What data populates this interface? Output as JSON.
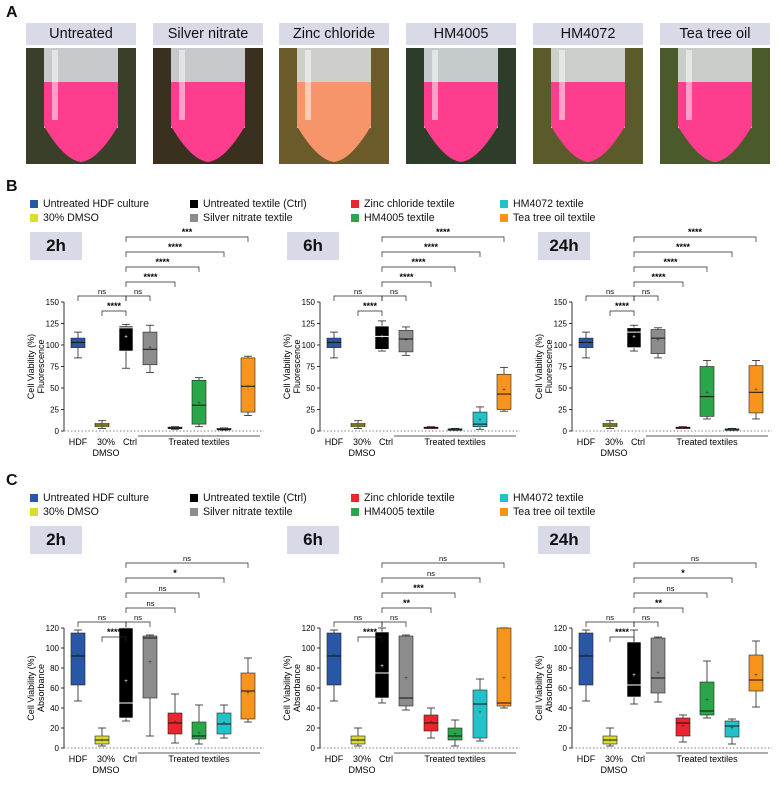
{
  "panel_labels": {
    "a": "A",
    "b": "B",
    "c": "C"
  },
  "tubes": [
    {
      "label": "Untreated",
      "color": "#ff3d8f"
    },
    {
      "label": "Silver nitrate",
      "color": "#ff3d8f"
    },
    {
      "label": "Zinc chloride",
      "color": "#f6946a"
    },
    {
      "label": "HM4005",
      "color": "#ff3d8f"
    },
    {
      "label": "HM4072",
      "color": "#ff3d8f"
    },
    {
      "label": "Tea tree oil",
      "color": "#ff3d8f"
    }
  ],
  "legend": [
    {
      "label": "Untreated HDF culture",
      "color": "#2a56a6"
    },
    {
      "label": "30% DMSO",
      "color": "#dcdc2a"
    },
    {
      "label": "Untreated textile (Ctrl)",
      "color": "#000000"
    },
    {
      "label": "Silver nitrate textile",
      "color": "#8c8c8c"
    },
    {
      "label": "Zinc chloride textile",
      "color": "#e8262e"
    },
    {
      "label": "HM4005 textile",
      "color": "#2aa64a"
    },
    {
      "label": "HM4072 textile",
      "color": "#22c2c8"
    },
    {
      "label": "Tea tree oil textile",
      "color": "#f7941d"
    }
  ],
  "chart_data": [
    {
      "type": "boxplot",
      "panel": "B",
      "title": "2h",
      "ylabel": "Cell Viability (%)\nFluorescence",
      "ylim": [
        0,
        150
      ],
      "yticks": [
        0,
        25,
        50,
        75,
        100,
        125,
        150
      ],
      "xlabels": [
        "HDF",
        "30%\nDMSO",
        "Ctrl"
      ],
      "group_label": "Treated textiles",
      "boxes": [
        {
          "min": 85,
          "q1": 97,
          "med": 103,
          "q3": 108,
          "max": 115,
          "mean": 103
        },
        {
          "min": 3,
          "q1": 5,
          "med": 7,
          "q3": 9,
          "max": 12,
          "mean": 7
        },
        {
          "min": 73,
          "q1": 93,
          "med": 120,
          "q3": 122,
          "max": 124,
          "mean": 110
        },
        {
          "min": 68,
          "q1": 77,
          "med": 95,
          "q3": 115,
          "max": 123,
          "mean": 97
        },
        {
          "min": 2,
          "q1": 3,
          "med": 3.5,
          "q3": 4.5,
          "max": 5,
          "mean": 3.7
        },
        {
          "min": 5,
          "q1": 8,
          "med": 30,
          "q3": 59,
          "max": 62,
          "mean": 33
        },
        {
          "min": 1,
          "q1": 1.5,
          "med": 2,
          "q3": 3,
          "max": 3.5,
          "mean": 2.2
        },
        {
          "min": 18,
          "q1": 22,
          "med": 52,
          "q3": 85,
          "max": 87,
          "mean": 52
        }
      ],
      "significance": [
        {
          "label": "ns",
          "from": 0,
          "to": 2
        },
        {
          "label": "ns",
          "from": 2,
          "to": 3
        },
        {
          "label": "****",
          "from": 1,
          "to": 2
        },
        {
          "label": "****",
          "from": 2,
          "to": 4
        },
        {
          "label": "****",
          "from": 2,
          "to": 5
        },
        {
          "label": "****",
          "from": 2,
          "to": 6
        },
        {
          "label": "***",
          "from": 2,
          "to": 7
        }
      ]
    },
    {
      "type": "boxplot",
      "panel": "B",
      "title": "6h",
      "ylabel": "Cell Viability (%)\nFluorescence",
      "ylim": [
        0,
        150
      ],
      "yticks": [
        0,
        25,
        50,
        75,
        100,
        125,
        150
      ],
      "xlabels": [
        "HDF",
        "30%\nDMSO",
        "Ctrl"
      ],
      "group_label": "Treated textiles",
      "boxes": [
        {
          "min": 85,
          "q1": 97,
          "med": 103,
          "q3": 108,
          "max": 115,
          "mean": 103
        },
        {
          "min": 3,
          "q1": 5,
          "med": 7,
          "q3": 9,
          "max": 12,
          "mean": 7
        },
        {
          "min": 93,
          "q1": 95,
          "med": 110,
          "q3": 122,
          "max": 128,
          "mean": 110
        },
        {
          "min": 88,
          "q1": 92,
          "med": 107,
          "q3": 117,
          "max": 121,
          "mean": 106
        },
        {
          "min": 3,
          "q1": 3.5,
          "med": 4,
          "q3": 4.5,
          "max": 5,
          "mean": 4
        },
        {
          "min": 1,
          "q1": 1.5,
          "med": 2,
          "q3": 2.5,
          "max": 3,
          "mean": 2
        },
        {
          "min": 2,
          "q1": 5,
          "med": 8,
          "q3": 22,
          "max": 28,
          "mean": 13
        },
        {
          "min": 23,
          "q1": 25,
          "med": 43,
          "q3": 66,
          "max": 74,
          "mean": 48
        }
      ],
      "significance": [
        {
          "label": "ns",
          "from": 0,
          "to": 2
        },
        {
          "label": "ns",
          "from": 2,
          "to": 3
        },
        {
          "label": "****",
          "from": 1,
          "to": 2
        },
        {
          "label": "****",
          "from": 2,
          "to": 4
        },
        {
          "label": "****",
          "from": 2,
          "to": 5
        },
        {
          "label": "****",
          "from": 2,
          "to": 6
        },
        {
          "label": "****",
          "from": 2,
          "to": 7
        }
      ]
    },
    {
      "type": "boxplot",
      "panel": "B",
      "title": "24h",
      "ylabel": "Cell Viability (%)\nFluorescence",
      "ylim": [
        0,
        150
      ],
      "yticks": [
        0,
        25,
        50,
        75,
        100,
        125,
        150
      ],
      "xlabels": [
        "HDF",
        "30%\nDMSO",
        "Ctrl"
      ],
      "group_label": "Treated textiles",
      "boxes": [
        {
          "min": 85,
          "q1": 97,
          "med": 103,
          "q3": 108,
          "max": 115,
          "mean": 103
        },
        {
          "min": 3,
          "q1": 5,
          "med": 7,
          "q3": 9,
          "max": 12,
          "mean": 7
        },
        {
          "min": 93,
          "q1": 97,
          "med": 115,
          "q3": 120,
          "max": 123,
          "mean": 110
        },
        {
          "min": 85,
          "q1": 90,
          "med": 108,
          "q3": 118,
          "max": 120,
          "mean": 106
        },
        {
          "min": 3,
          "q1": 3.5,
          "med": 4,
          "q3": 4.5,
          "max": 5,
          "mean": 4
        },
        {
          "min": 14,
          "q1": 17,
          "med": 40,
          "q3": 75,
          "max": 82,
          "mean": 45
        },
        {
          "min": 1,
          "q1": 1.5,
          "med": 2,
          "q3": 2.5,
          "max": 3,
          "mean": 2
        },
        {
          "min": 14,
          "q1": 21,
          "med": 45,
          "q3": 76,
          "max": 82,
          "mean": 48
        }
      ],
      "significance": [
        {
          "label": "ns",
          "from": 0,
          "to": 2
        },
        {
          "label": "ns",
          "from": 2,
          "to": 3
        },
        {
          "label": "****",
          "from": 1,
          "to": 2
        },
        {
          "label": "****",
          "from": 2,
          "to": 4
        },
        {
          "label": "****",
          "from": 2,
          "to": 5
        },
        {
          "label": "****",
          "from": 2,
          "to": 6
        },
        {
          "label": "****",
          "from": 2,
          "to": 7
        }
      ]
    },
    {
      "type": "boxplot",
      "panel": "C",
      "title": "2h",
      "ylabel": "Cell Viability (%)\nAbsorbance",
      "ylim": [
        0,
        120
      ],
      "yticks": [
        0,
        20,
        40,
        60,
        80,
        100,
        120
      ],
      "xlabels": [
        "HDF",
        "30%\nDMSO",
        "Ctrl"
      ],
      "group_label": "Treated textiles",
      "boxes": [
        {
          "min": 47,
          "q1": 63,
          "med": 92,
          "q3": 115,
          "max": 118,
          "mean": 93
        },
        {
          "min": 2,
          "q1": 4,
          "med": 8,
          "q3": 12,
          "max": 20,
          "mean": 8
        },
        {
          "min": 27,
          "q1": 30,
          "med": 45,
          "q3": 120,
          "max": 120,
          "mean": 67
        },
        {
          "min": 12,
          "q1": 50,
          "med": 110,
          "q3": 112,
          "max": 113,
          "mean": 86
        },
        {
          "min": 5,
          "q1": 14,
          "med": 25,
          "q3": 35,
          "max": 54,
          "mean": 26
        },
        {
          "min": 4,
          "q1": 9,
          "med": 12,
          "q3": 26,
          "max": 43,
          "mean": 15
        },
        {
          "min": 10,
          "q1": 14,
          "med": 24,
          "q3": 35,
          "max": 43,
          "mean": 25
        },
        {
          "min": 26,
          "q1": 29,
          "med": 57,
          "q3": 75,
          "max": 90,
          "mean": 55
        }
      ],
      "significance": [
        {
          "label": "ns",
          "from": 0,
          "to": 2
        },
        {
          "label": "ns",
          "from": 2,
          "to": 3
        },
        {
          "label": "****",
          "from": 1,
          "to": 2
        },
        {
          "label": "ns",
          "from": 2,
          "to": 4
        },
        {
          "label": "ns",
          "from": 2,
          "to": 5
        },
        {
          "label": "*",
          "from": 2,
          "to": 6
        },
        {
          "label": "ns",
          "from": 2,
          "to": 7
        }
      ]
    },
    {
      "type": "boxplot",
      "panel": "C",
      "title": "6h",
      "ylabel": "Cell Viability (%)\nAbsorbance",
      "ylim": [
        0,
        120
      ],
      "yticks": [
        0,
        20,
        40,
        60,
        80,
        100,
        120
      ],
      "xlabels": [
        "HDF",
        "30%\nDMSO",
        "Ctrl"
      ],
      "group_label": "Treated textiles",
      "boxes": [
        {
          "min": 47,
          "q1": 63,
          "med": 92,
          "q3": 115,
          "max": 118,
          "mean": 93
        },
        {
          "min": 2,
          "q1": 4,
          "med": 8,
          "q3": 12,
          "max": 20,
          "mean": 8
        },
        {
          "min": 45,
          "q1": 50,
          "med": 75,
          "q3": 116,
          "max": 120,
          "mean": 82
        },
        {
          "min": 38,
          "q1": 42,
          "med": 50,
          "q3": 112,
          "max": 113,
          "mean": 70
        },
        {
          "min": 10,
          "q1": 17,
          "med": 25,
          "q3": 33,
          "max": 40,
          "mean": 26
        },
        {
          "min": 2,
          "q1": 8,
          "med": 12,
          "q3": 20,
          "max": 28,
          "mean": 14
        },
        {
          "min": 7,
          "q1": 10,
          "med": 44,
          "q3": 58,
          "max": 69,
          "mean": 36
        },
        {
          "min": 40,
          "q1": 42,
          "med": 45,
          "q3": 120,
          "max": 120,
          "mean": 70
        }
      ],
      "significance": [
        {
          "label": "ns",
          "from": 0,
          "to": 2
        },
        {
          "label": "ns",
          "from": 2,
          "to": 3
        },
        {
          "label": "****",
          "from": 1,
          "to": 2
        },
        {
          "label": "**",
          "from": 2,
          "to": 4
        },
        {
          "label": "***",
          "from": 2,
          "to": 5
        },
        {
          "label": "ns",
          "from": 2,
          "to": 6
        },
        {
          "label": "ns",
          "from": 2,
          "to": 7
        }
      ]
    },
    {
      "type": "boxplot",
      "panel": "C",
      "title": "24h",
      "ylabel": "Cell Viability (%)\nAbsorbance",
      "ylim": [
        0,
        120
      ],
      "yticks": [
        0,
        20,
        40,
        60,
        80,
        100,
        120
      ],
      "xlabels": [
        "HDF",
        "30%\nDMSO",
        "Ctrl"
      ],
      "group_label": "Treated textiles",
      "boxes": [
        {
          "min": 47,
          "q1": 63,
          "med": 92,
          "q3": 115,
          "max": 118,
          "mean": 93
        },
        {
          "min": 2,
          "q1": 4,
          "med": 8,
          "q3": 12,
          "max": 20,
          "mean": 8
        },
        {
          "min": 44,
          "q1": 51,
          "med": 63,
          "q3": 106,
          "max": 118,
          "mean": 73
        },
        {
          "min": 46,
          "q1": 55,
          "med": 70,
          "q3": 110,
          "max": 111,
          "mean": 75
        },
        {
          "min": 6,
          "q1": 12,
          "med": 25,
          "q3": 30,
          "max": 33,
          "mean": 22
        },
        {
          "min": 30,
          "q1": 33,
          "med": 37,
          "q3": 66,
          "max": 87,
          "mean": 48
        },
        {
          "min": 4,
          "q1": 11,
          "med": 22,
          "q3": 27,
          "max": 29,
          "mean": 20
        },
        {
          "min": 41,
          "q1": 57,
          "med": 68,
          "q3": 93,
          "max": 107,
          "mean": 73
        }
      ],
      "significance": [
        {
          "label": "ns",
          "from": 0,
          "to": 2
        },
        {
          "label": "ns",
          "from": 2,
          "to": 3
        },
        {
          "label": "****",
          "from": 1,
          "to": 2
        },
        {
          "label": "**",
          "from": 2,
          "to": 4
        },
        {
          "label": "ns",
          "from": 2,
          "to": 5
        },
        {
          "label": "*",
          "from": 2,
          "to": 6
        },
        {
          "label": "ns",
          "from": 2,
          "to": 7
        }
      ]
    }
  ]
}
